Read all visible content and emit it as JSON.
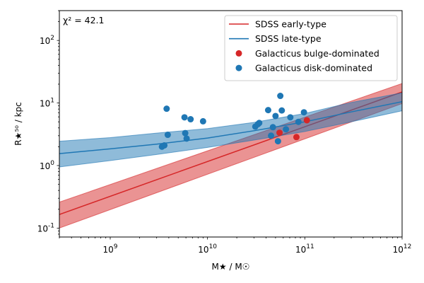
{
  "chart_data": {
    "type": "scatter",
    "annotation": "χ² = 42.1",
    "xlabel": "M★ / M☉",
    "ylabel": "R★⁵⁰ / kpc",
    "xscale": "log",
    "yscale": "log",
    "xlim": [
      300000000.0,
      1000000000000.0
    ],
    "ylim": [
      0.072,
      300
    ],
    "x_ticks": [
      {
        "value": 1000000000.0,
        "label": "10^9"
      },
      {
        "value": 10000000000.0,
        "label": "10^10"
      },
      {
        "value": 100000000000.0,
        "label": "10^11"
      },
      {
        "value": 1000000000000.0,
        "label": "10^12"
      }
    ],
    "y_ticks": [
      {
        "value": 0.1,
        "label": "10^-1"
      },
      {
        "value": 1,
        "label": "10^0"
      },
      {
        "value": 10,
        "label": "10^1"
      },
      {
        "value": 100,
        "label": "10^2"
      }
    ],
    "grid": false,
    "legend_position": "top-right",
    "bands": [
      {
        "name": "SDSS early-type",
        "color": "#d62728",
        "x": [
          300000000.0,
          1000000000000.0
        ],
        "y_mid": [
          0.165,
          15.0
        ],
        "y_low": [
          0.1,
          9.8
        ],
        "y_high": [
          0.26,
          20.5
        ]
      },
      {
        "name": "SDSS late-type",
        "color": "#1f77b4",
        "x": [
          300000000.0,
          1000000000.0,
          3000000000.0,
          10000000000.0,
          30000000000.0,
          100000000000.0,
          300000000000.0,
          1000000000000.0
        ],
        "y_mid": [
          1.55,
          1.85,
          2.2,
          2.75,
          3.6,
          5.0,
          7.2,
          10.5
        ],
        "y_low": [
          0.95,
          1.2,
          1.5,
          1.95,
          2.55,
          3.5,
          5.0,
          7.5
        ],
        "y_high": [
          2.45,
          2.8,
          3.3,
          3.9,
          4.9,
          6.8,
          10.2,
          14.5
        ]
      }
    ],
    "series": [
      {
        "name": "Galacticus bulge-dominated",
        "color": "#d62728",
        "points": [
          [
            55000000000.0,
            3.35
          ],
          [
            82000000000.0,
            2.85
          ],
          [
            105000000000.0,
            5.3
          ]
        ]
      },
      {
        "name": "Galacticus disk-dominated",
        "color": "#1f77b4",
        "points": [
          [
            3400000000.0,
            2.0
          ],
          [
            3600000000.0,
            2.1
          ],
          [
            3800000000.0,
            8.1
          ],
          [
            3900000000.0,
            3.1
          ],
          [
            5800000000.0,
            5.9
          ],
          [
            5900000000.0,
            3.3
          ],
          [
            6100000000.0,
            2.7
          ],
          [
            6700000000.0,
            5.5
          ],
          [
            9000000000.0,
            5.1
          ],
          [
            31000000000.0,
            4.2
          ],
          [
            33000000000.0,
            4.6
          ],
          [
            34000000000.0,
            4.8
          ],
          [
            42000000000.0,
            7.7
          ],
          [
            45000000000.0,
            3.0
          ],
          [
            47000000000.0,
            4.1
          ],
          [
            50000000000.0,
            6.2
          ],
          [
            53000000000.0,
            2.45
          ],
          [
            56000000000.0,
            13.0
          ],
          [
            58000000000.0,
            7.6
          ],
          [
            64000000000.0,
            3.8
          ],
          [
            71000000000.0,
            5.9
          ],
          [
            86000000000.0,
            5.0
          ],
          [
            98000000000.0,
            7.1
          ]
        ]
      }
    ],
    "legend": [
      {
        "label": "SDSS early-type",
        "kind": "line",
        "color": "#d62728"
      },
      {
        "label": "SDSS late-type",
        "kind": "line",
        "color": "#1f77b4"
      },
      {
        "label": "Galacticus bulge-dominated",
        "kind": "marker",
        "color": "#d62728"
      },
      {
        "label": "Galacticus disk-dominated",
        "kind": "marker",
        "color": "#1f77b4"
      }
    ]
  }
}
